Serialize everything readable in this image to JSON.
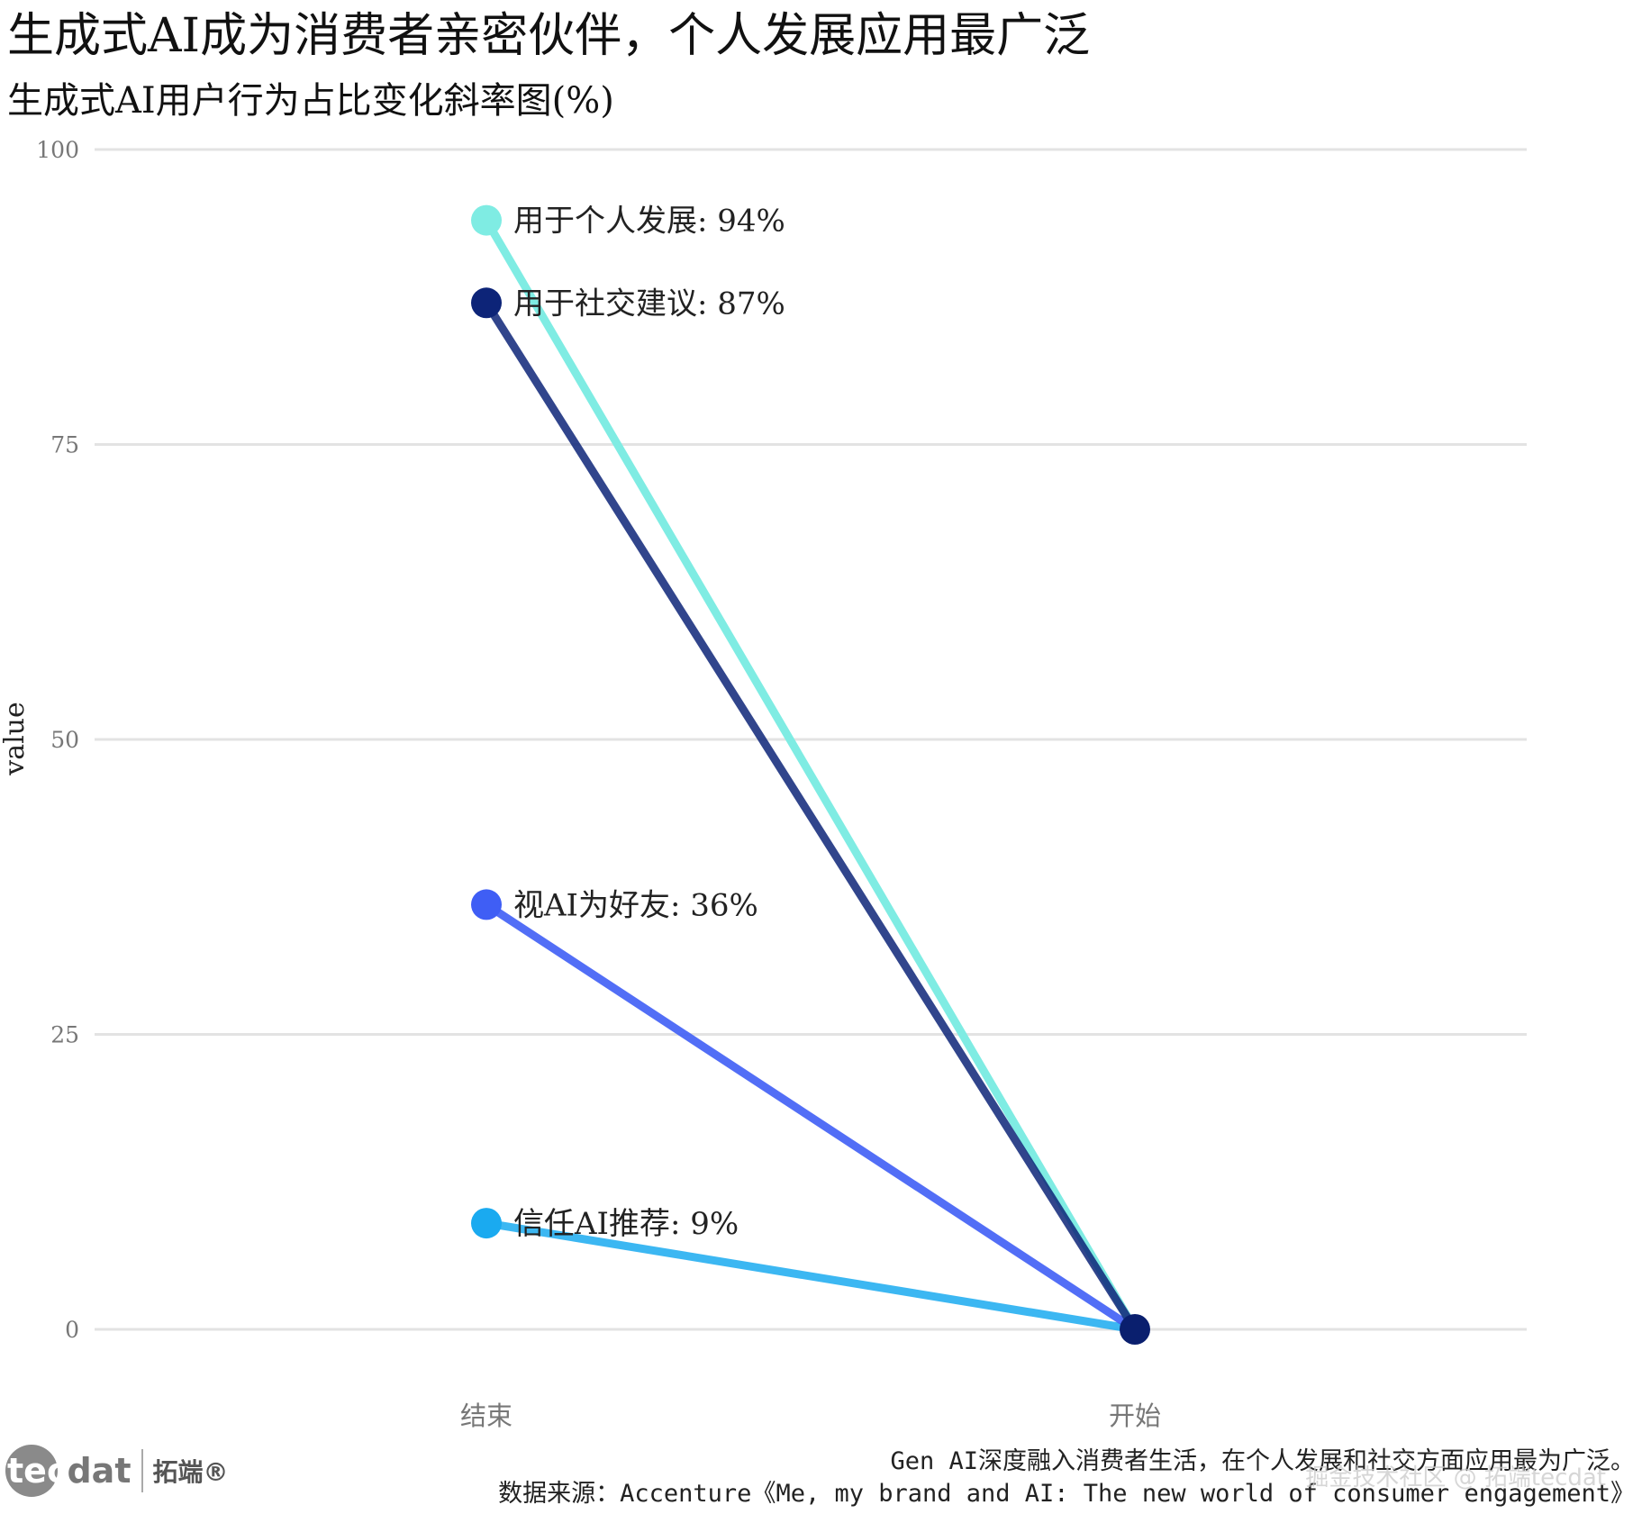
{
  "header": {
    "title": "生成式AI成为消费者亲密伙伴，个人发展应用最广泛",
    "subtitle": "生成式AI用户行为占比变化斜率图(%)"
  },
  "chart_data": {
    "type": "line",
    "subtype": "slope",
    "x_categories": [
      "结束",
      "开始"
    ],
    "ylabel": "value",
    "ylim": [
      0,
      100
    ],
    "yticks": [
      0,
      25,
      50,
      75,
      100
    ],
    "grid": true,
    "series": [
      {
        "name": "用于个人发展",
        "label": "用于个人发展: 94%",
        "values": [
          94,
          0
        ],
        "color": "#7fece3"
      },
      {
        "name": "用于社交建议",
        "label": "用于社交建议: 87%",
        "values": [
          87,
          0
        ],
        "color": "#0d2478"
      },
      {
        "name": "视AI为好友",
        "label": "视AI为好友: 36%",
        "values": [
          36,
          0
        ],
        "color": "#3f5ef5"
      },
      {
        "name": "信任AI推荐",
        "label": "信任AI推荐: 9%",
        "values": [
          9,
          0
        ],
        "color": "#1aaaf0"
      }
    ],
    "end_point_color": "#0a1f6e"
  },
  "footer": {
    "note": "Gen AI深度融入消费者生活，在个人发展和社交方面应用最为广泛。",
    "source": "数据来源：Accenture《Me, my brand and AI: The new world of consumer engagement》"
  },
  "logo": {
    "tec": "tec",
    "dat": "dat",
    "cn": "拓端®"
  },
  "watermark": "掘金技术社区 @ 拓端tecdat"
}
